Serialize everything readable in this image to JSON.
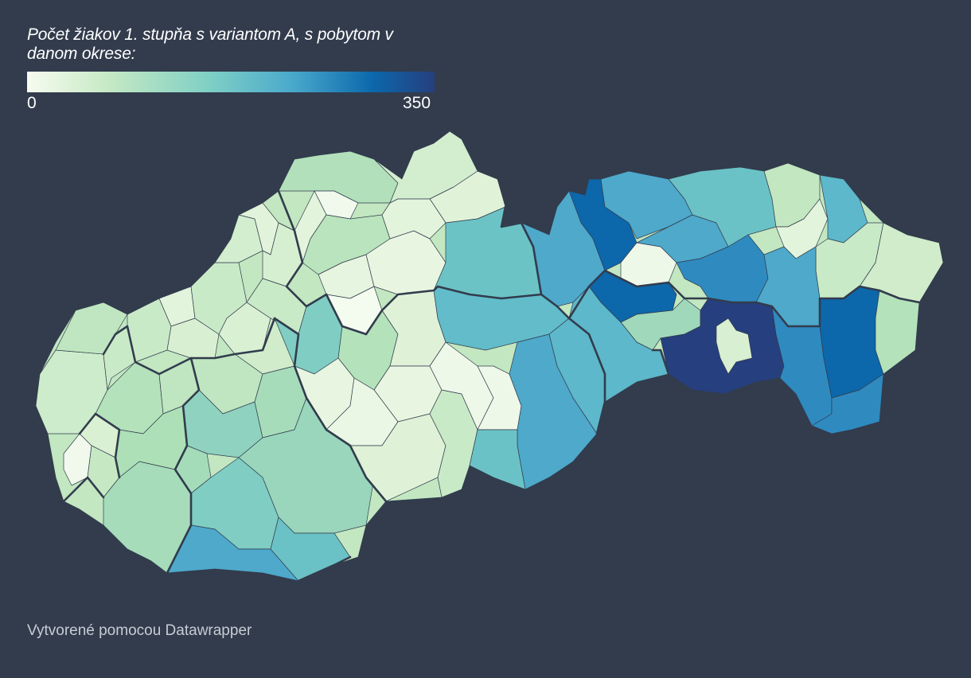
{
  "legend": {
    "title": "Počet žiakov 1. stupňa s variantom A, s pobytom v danom okrese:",
    "min_label": "0",
    "max_label": "350",
    "min_value": 0,
    "max_value": 350,
    "color_stops": [
      "#f7fcf0",
      "#c6e9c4",
      "#7ecfc5",
      "#4aa9cc",
      "#0c67ab",
      "#263f7e"
    ]
  },
  "footer": {
    "credit": "Vytvorené pomocou Datawrapper"
  },
  "colors": {
    "background": "#323c4d",
    "text": "#ffffff",
    "credit_text": "#c8ccd4"
  }
}
